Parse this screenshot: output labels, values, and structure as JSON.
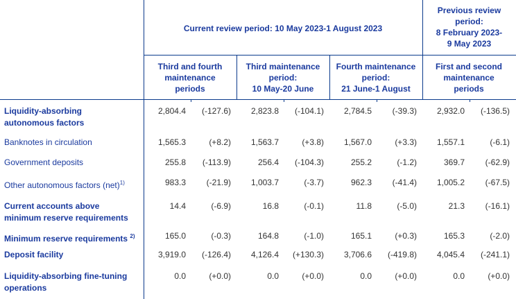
{
  "header": {
    "current_period": "Current review period: 10 May 2023-1 August 2023",
    "previous_period": [
      "Previous review",
      "period:",
      "8 February 2023-",
      "9 May 2023"
    ],
    "columns": [
      [
        "Third and fourth",
        "maintenance",
        "periods"
      ],
      [
        "Third maintenance",
        "period:",
        "10 May-20 June"
      ],
      [
        "Fourth maintenance",
        "period:",
        "21 June-1 August"
      ],
      [
        "First and second",
        "maintenance",
        "periods"
      ]
    ]
  },
  "rows": [
    {
      "label": [
        "Liquidity-absorbing",
        "autonomous factors"
      ],
      "bold": true,
      "note": "",
      "values": [
        "2,804.4",
        "(-127.6)",
        "2,823.8",
        "(-104.1)",
        "2,784.5",
        "(-39.3)",
        "2,932.0",
        "(-136.5)"
      ]
    },
    {
      "label": [
        "Banknotes in circulation"
      ],
      "bold": false,
      "note": "",
      "values": [
        "1,565.3",
        "(+8.2)",
        "1,563.7",
        "(+3.8)",
        "1,567.0",
        "(+3.3)",
        "1,557.1",
        "(-6.1)"
      ]
    },
    {
      "label": [
        "Government deposits"
      ],
      "bold": false,
      "note": "",
      "values": [
        "255.8",
        "(-113.9)",
        "256.4",
        "(-104.3)",
        "255.2",
        "(-1.2)",
        "369.7",
        "(-62.9)"
      ]
    },
    {
      "label": [
        "Other autonomous factors (net)"
      ],
      "bold": false,
      "note": "1)",
      "values": [
        "983.3",
        "(-21.9)",
        "1,003.7",
        "(-3.7)",
        "962.3",
        "(-41.4)",
        "1,005.2",
        "(-67.5)"
      ]
    },
    {
      "label": [
        "Current accounts above",
        "minimum reserve requirements"
      ],
      "bold": true,
      "note": "",
      "values": [
        "14.4",
        "(-6.9)",
        "16.8",
        "(-0.1)",
        "11.8",
        "(-5.0)",
        "21.3",
        "(-16.1)"
      ]
    },
    {
      "label": [
        "Minimum reserve requirements "
      ],
      "bold": true,
      "note": "2)",
      "values": [
        "165.0",
        "(-0.3)",
        "164.8",
        "(-1.0)",
        "165.1",
        "(+0.3)",
        "165.3",
        "(-2.0)"
      ]
    },
    {
      "label": [
        "Deposit facility"
      ],
      "bold": true,
      "note": "",
      "values": [
        "3,919.0",
        "(-126.4)",
        "4,126.4",
        "(+130.3)",
        "3,706.6",
        "(-419.8)",
        "4,045.4",
        "(-241.1)"
      ]
    },
    {
      "label": [
        "Liquidity-absorbing fine-tuning",
        "operations"
      ],
      "bold": true,
      "note": "",
      "values": [
        "0.0",
        "(+0.0)",
        "0.0",
        "(+0.0)",
        "0.0",
        "(+0.0)",
        "0.0",
        "(+0.0)"
      ]
    }
  ],
  "colors": {
    "heading": "#1a3a9e",
    "rule": "#0a3a8c",
    "text": "#333333"
  }
}
